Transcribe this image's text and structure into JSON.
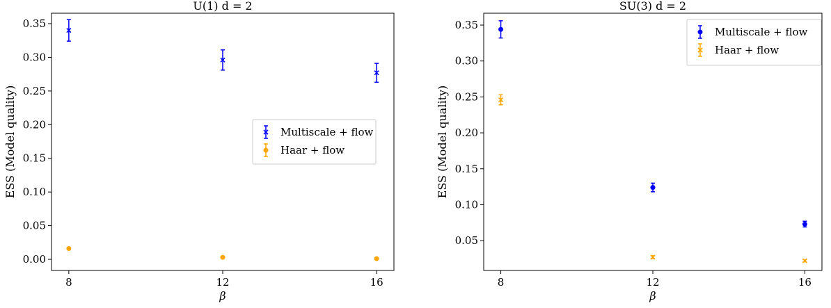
{
  "chart_data": [
    {
      "type": "scatter",
      "title": "U(1) d = 2",
      "xlabel": "β",
      "ylabel": "ESS (Model quality)",
      "x_ticks": [
        8,
        12,
        16
      ],
      "x_tick_labels": [
        "8",
        "12",
        "16"
      ],
      "xlim": [
        7.55,
        16.45
      ],
      "ylim": [
        -0.0165,
        0.3655
      ],
      "y_ticks": [
        0.0,
        0.05,
        0.1,
        0.15,
        0.2,
        0.25,
        0.3,
        0.35
      ],
      "y_tick_labels": [
        "0.00",
        "0.05",
        "0.10",
        "0.15",
        "0.20",
        "0.25",
        "0.30",
        "0.35"
      ],
      "grid": false,
      "legend_position": "center-right",
      "series": [
        {
          "name": "Multiscale + flow",
          "color": "#0000ff",
          "marker": "x",
          "x": [
            8,
            12,
            16
          ],
          "y": [
            0.34,
            0.296,
            0.277
          ],
          "err": [
            0.016,
            0.015,
            0.014
          ]
        },
        {
          "name": "Haar + flow",
          "color": "#ffa500",
          "marker": "o",
          "x": [
            8,
            12,
            16
          ],
          "y": [
            0.016,
            0.003,
            0.001
          ],
          "err": [
            0.001,
            0.0005,
            0.0003
          ]
        }
      ]
    },
    {
      "type": "scatter",
      "title": "SU(3) d = 2",
      "xlabel": "β",
      "ylabel": "ESS (Model quality)",
      "x_ticks": [
        8,
        12,
        16
      ],
      "x_tick_labels": [
        "8",
        "12",
        "16"
      ],
      "xlim": [
        7.55,
        16.45
      ],
      "ylim": [
        0.0085,
        0.3665
      ],
      "y_ticks": [
        0.05,
        0.1,
        0.15,
        0.2,
        0.25,
        0.3,
        0.35
      ],
      "y_tick_labels": [
        "0.05",
        "0.10",
        "0.15",
        "0.20",
        "0.25",
        "0.30",
        "0.35"
      ],
      "grid": false,
      "legend_position": "top-right",
      "series": [
        {
          "name": "Multiscale + flow",
          "color": "#0000ff",
          "marker": "o",
          "x": [
            8,
            12,
            16
          ],
          "y": [
            0.344,
            0.124,
            0.073
          ],
          "err": [
            0.012,
            0.006,
            0.004
          ]
        },
        {
          "name": "Haar + flow",
          "color": "#ffa500",
          "marker": "x",
          "x": [
            8,
            12,
            16
          ],
          "y": [
            0.246,
            0.027,
            0.022
          ],
          "err": [
            0.007,
            0.002,
            0.0015
          ]
        }
      ]
    }
  ]
}
